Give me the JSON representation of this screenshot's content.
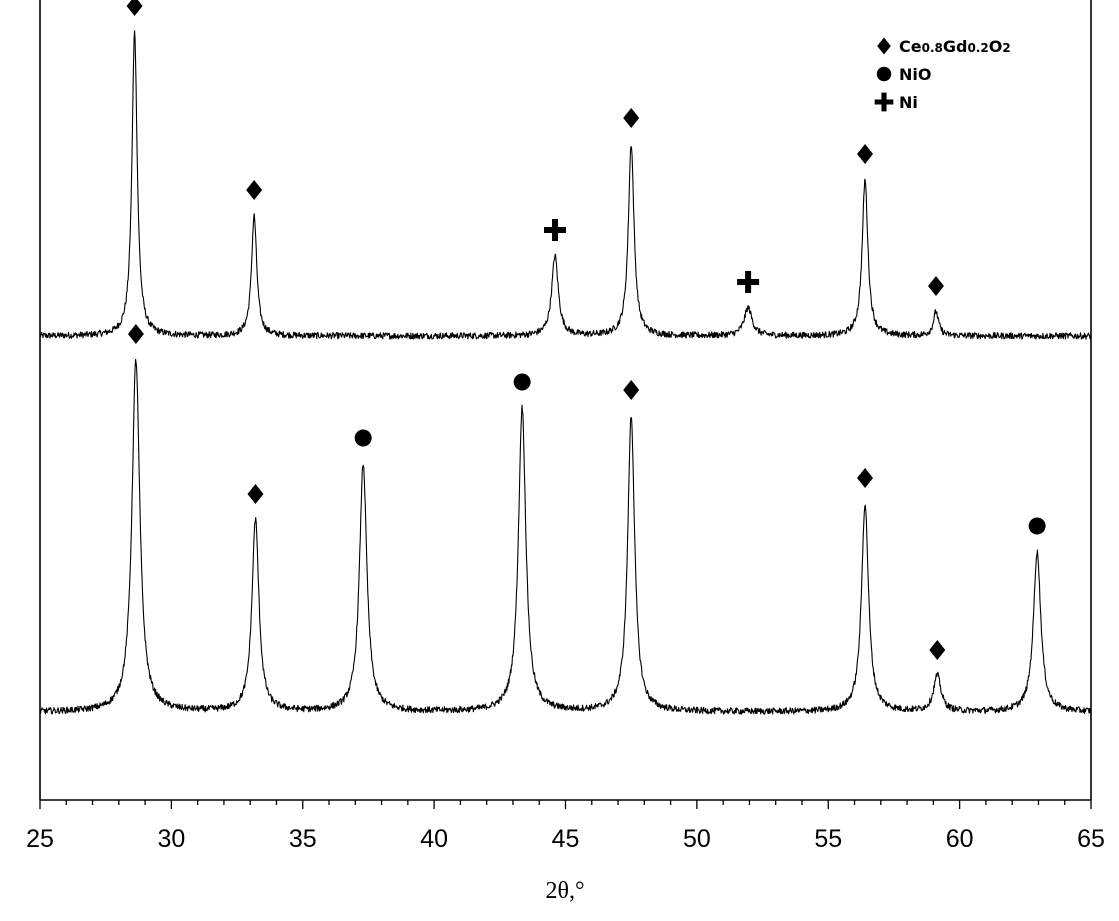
{
  "chart_data": {
    "type": "line",
    "title": "",
    "xlabel": "2θ,°",
    "ylabel": "",
    "xlim": [
      25,
      65
    ],
    "x_ticks": [
      25,
      30,
      35,
      40,
      45,
      50,
      55,
      60,
      65
    ],
    "x_tick_labels": [
      "25",
      "30",
      "35",
      "40",
      "45",
      "50",
      "55",
      "60",
      "65"
    ],
    "x_minor_step": 1,
    "y_scale": "arbitrary units, no tick labels",
    "ylim": [
      0,
      100
    ],
    "grid": false,
    "legend": {
      "placement": "top-right",
      "entries": [
        {
          "marker": "diamond",
          "label_parts": [
            {
              "t": "Ce",
              "sub": false
            },
            {
              "t": "0.8",
              "sub": true
            },
            {
              "t": "Gd",
              "sub": false
            },
            {
              "t": "0.2",
              "sub": true
            },
            {
              "t": "O",
              "sub": false
            },
            {
              "t": "2",
              "sub": true
            }
          ]
        },
        {
          "marker": "circle",
          "label": "NiO"
        },
        {
          "marker": "cross",
          "label": "Ni"
        }
      ]
    },
    "series": [
      {
        "baseline": 58,
        "noise": 0.4,
        "peaks": [
          {
            "x": 28.6,
            "height": 38,
            "width": 0.12,
            "marker": "diamond"
          },
          {
            "x": 33.15,
            "height": 15,
            "width": 0.12,
            "marker": "diamond"
          },
          {
            "x": 44.6,
            "height": 10,
            "width": 0.15,
            "marker": "cross"
          },
          {
            "x": 47.5,
            "height": 24,
            "width": 0.13,
            "marker": "diamond"
          },
          {
            "x": 51.95,
            "height": 3.5,
            "width": 0.18,
            "marker": "cross"
          },
          {
            "x": 56.4,
            "height": 19.5,
            "width": 0.13,
            "marker": "diamond"
          },
          {
            "x": 59.1,
            "height": 3,
            "width": 0.12,
            "marker": "diamond"
          }
        ]
      },
      {
        "baseline": 11,
        "noise": 0.4,
        "peaks": [
          {
            "x": 28.65,
            "height": 44,
            "width": 0.18,
            "marker": "diamond"
          },
          {
            "x": 33.2,
            "height": 24,
            "width": 0.16,
            "marker": "diamond"
          },
          {
            "x": 37.3,
            "height": 31,
            "width": 0.17,
            "marker": "circle"
          },
          {
            "x": 43.35,
            "height": 38,
            "width": 0.17,
            "marker": "circle"
          },
          {
            "x": 47.5,
            "height": 37,
            "width": 0.16,
            "marker": "diamond"
          },
          {
            "x": 56.4,
            "height": 26,
            "width": 0.16,
            "marker": "diamond"
          },
          {
            "x": 59.15,
            "height": 4.5,
            "width": 0.17,
            "marker": "diamond"
          },
          {
            "x": 62.95,
            "height": 20,
            "width": 0.17,
            "marker": "circle"
          }
        ]
      }
    ]
  }
}
